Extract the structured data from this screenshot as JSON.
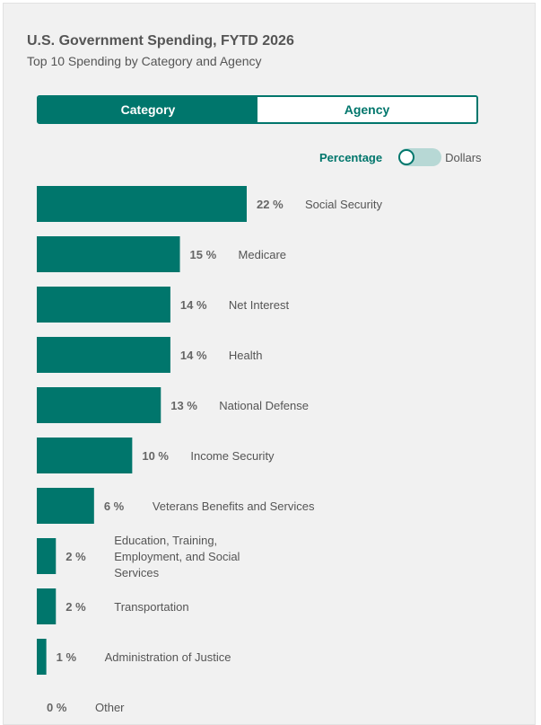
{
  "header": {
    "title": "U.S. Government Spending, FYTD 2026",
    "subtitle": "Top 10 Spending by Category and Agency"
  },
  "tabs": [
    {
      "label": "Category",
      "active": true
    },
    {
      "label": "Agency",
      "active": false
    }
  ],
  "toggle": {
    "left_label": "Percentage",
    "right_label": "Dollars",
    "selected": "Percentage"
  },
  "colors": {
    "accent": "#00766c",
    "toggle_track": "#b7d8d5"
  },
  "chart_data": {
    "type": "bar",
    "orientation": "horizontal",
    "unit": "%",
    "categories": [
      "Social Security",
      "Medicare",
      "Net Interest",
      "Health",
      "National Defense",
      "Income Security",
      "Veterans Benefits and Services",
      "Education, Training, Employment, and Social Services",
      "Transportation",
      "Administration of Justice",
      "Other"
    ],
    "values": [
      22,
      15,
      14,
      14,
      13,
      10,
      6,
      2,
      2,
      1,
      0
    ],
    "value_labels": [
      "22 %",
      "15 %",
      "14 %",
      "14 %",
      "13 %",
      "10 %",
      "6 %",
      "2 %",
      "2 %",
      "1 %",
      "0 %"
    ],
    "label_lines": [
      [
        "Social Security"
      ],
      [
        "Medicare"
      ],
      [
        "Net Interest"
      ],
      [
        "Health"
      ],
      [
        "National Defense"
      ],
      [
        "Income Security"
      ],
      [
        "Veterans Benefits and Services"
      ],
      [
        "Education, Training,",
        "Employment, and Social",
        "Services"
      ],
      [
        "Transportation"
      ],
      [
        "Administration of Justice"
      ],
      [
        "Other"
      ]
    ]
  }
}
